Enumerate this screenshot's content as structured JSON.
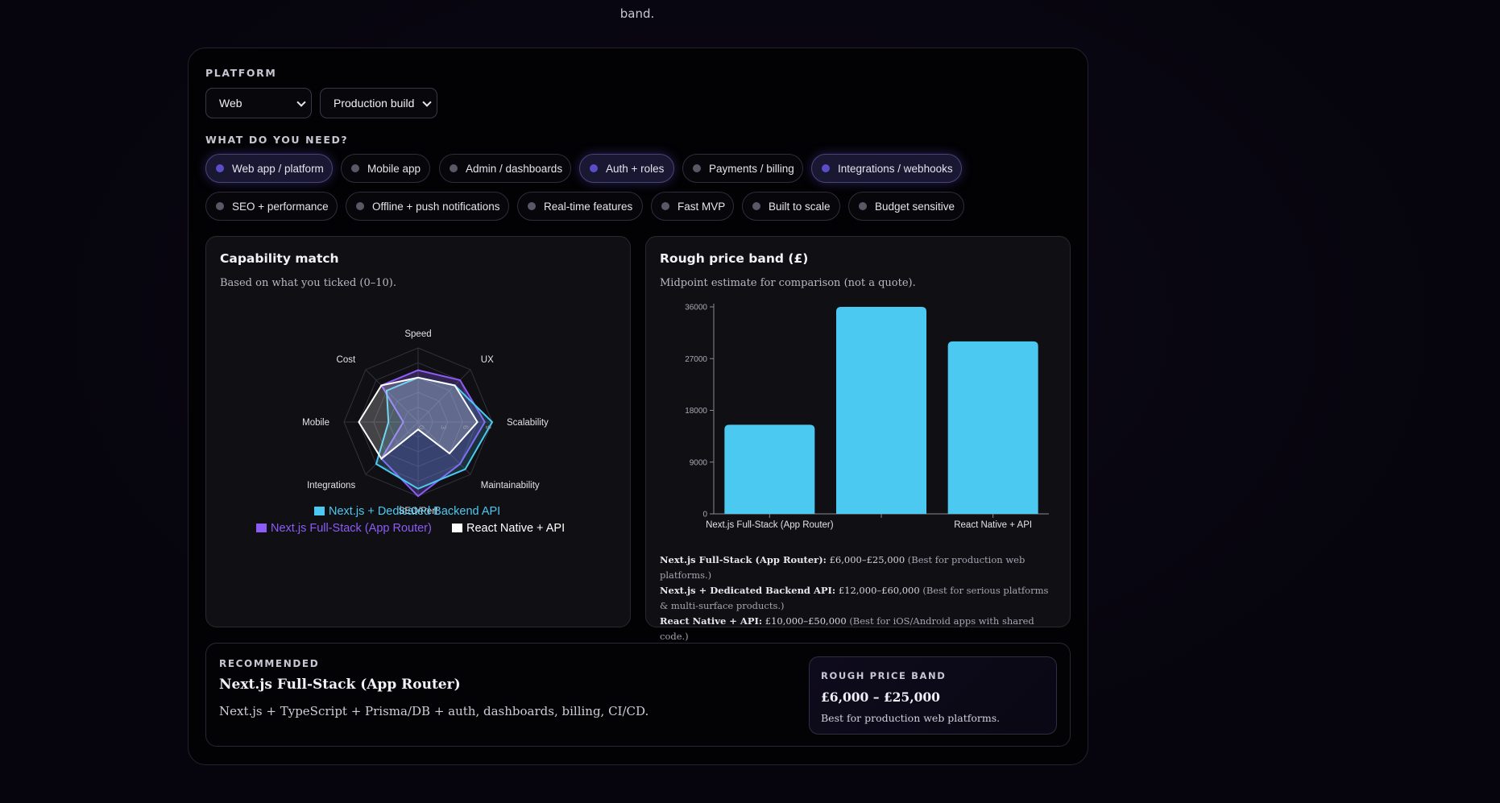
{
  "intro_tail": "band.",
  "platform": {
    "label": "PLATFORM",
    "selects": [
      {
        "value": "Web"
      },
      {
        "value": "Production build"
      }
    ]
  },
  "needs": {
    "label": "WHAT DO YOU NEED?",
    "chips": [
      {
        "label": "Web app / platform",
        "selected": true
      },
      {
        "label": "Mobile app",
        "selected": false
      },
      {
        "label": "Admin / dashboards",
        "selected": false
      },
      {
        "label": "Auth + roles",
        "selected": true
      },
      {
        "label": "Payments / billing",
        "selected": false
      },
      {
        "label": "Integrations / webhooks",
        "selected": true
      },
      {
        "label": "SEO + performance",
        "selected": false
      },
      {
        "label": "Offline + push notifications",
        "selected": false
      },
      {
        "label": "Real-time features",
        "selected": false
      },
      {
        "label": "Fast MVP",
        "selected": false
      },
      {
        "label": "Built to scale",
        "selected": false
      },
      {
        "label": "Budget sensitive",
        "selected": false
      }
    ]
  },
  "capability": {
    "title": "Capability match",
    "subtitle": "Based on what you ticked (0–10)."
  },
  "price": {
    "title": "Rough price band (£)",
    "subtitle": "Midpoint estimate for comparison (not a quote).",
    "notes": [
      {
        "name": "Next.js Full-Stack (App Router):",
        "range": "£6,000–£25,000",
        "note": "(Best for production web platforms.)"
      },
      {
        "name": "Next.js + Dedicated Backend API:",
        "range": "£12,000–£60,000",
        "note": "(Best for serious platforms & multi-surface products.)"
      },
      {
        "name": "React Native + API:",
        "range": "£10,000–£50,000",
        "note": "(Best for iOS/Android apps with shared code.)"
      }
    ]
  },
  "chart_data": [
    {
      "type": "radar",
      "axes": [
        "Speed",
        "UX",
        "Scalability",
        "Maintainability",
        "SEO/Perf",
        "Integrations",
        "Mobile",
        "Cost"
      ],
      "ticks": [
        "0",
        "3",
        "6",
        "9"
      ],
      "range": [
        0,
        10
      ],
      "legend_position": "bottom",
      "series": [
        {
          "name": "Next.js + Dedicated Backend API",
          "color": "#4cc9f0",
          "values": [
            6,
            7,
            10,
            9,
            9,
            8,
            4,
            6
          ]
        },
        {
          "name": "Next.js Full-Stack (App Router)",
          "color": "#8b5cf6",
          "values": [
            7,
            8,
            9,
            8,
            10,
            7,
            2,
            7
          ]
        },
        {
          "name": "React Native + API",
          "color": "#ffffff",
          "values": [
            6,
            7,
            8,
            6,
            1,
            7,
            8,
            7
          ]
        }
      ]
    },
    {
      "type": "bar",
      "categories": [
        "Next.js Full-Stack (App Router)",
        "Next.js + Dedicated Backend API",
        "React Native + API"
      ],
      "tick_labels": [
        "Next.js Full-Stack (App Router)",
        "",
        "React Native + API"
      ],
      "values": [
        15500,
        36000,
        30000
      ],
      "yticks": [
        0,
        9000,
        18000,
        27000,
        36000
      ],
      "ylim": [
        0,
        36000
      ],
      "color": "#4cc9f0"
    }
  ],
  "recommended": {
    "label": "RECOMMENDED",
    "title": "Next.js Full-Stack (App Router)",
    "desc": "Next.js + TypeScript + Prisma/DB + auth, dashboards, billing, CI/CD.",
    "band_label": "ROUGH PRICE BAND",
    "band_amount": "£6,000 – £25,000",
    "band_note": "Best for production web platforms."
  }
}
